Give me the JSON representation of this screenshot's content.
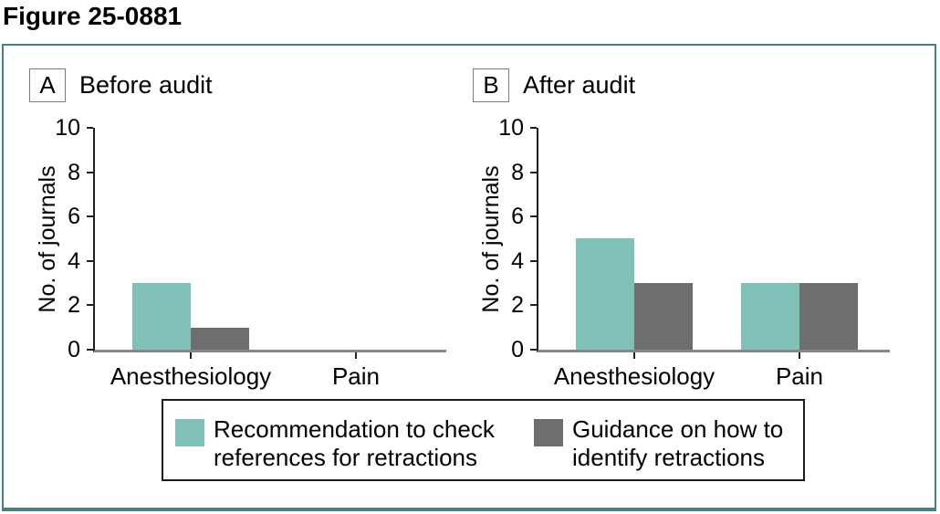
{
  "title": "Figure 25-0881",
  "panels": [
    {
      "letter": "A",
      "title": "Before audit"
    },
    {
      "letter": "B",
      "title": "After audit"
    }
  ],
  "legend": {
    "items": [
      {
        "label": "Recommendation to check references for retractions",
        "color": "#7fc1b6"
      },
      {
        "label": "Guidance on how to identify retractions",
        "color": "#6d6e70"
      }
    ]
  },
  "colors": {
    "series_teal": "#7fc1b6",
    "series_gray": "#6d6e70",
    "frame_border": "#47807c",
    "axis": "#1f1f1f",
    "baseline": "#85878a",
    "legend_border": "#1a1a1a"
  },
  "chart_data": [
    {
      "type": "bar",
      "panel": "A",
      "title": "Before audit",
      "categories": [
        "Anesthesiology",
        "Pain"
      ],
      "series": [
        {
          "name": "Recommendation to check references for retractions",
          "color": "#7fc1b6",
          "values": [
            3,
            0
          ]
        },
        {
          "name": "Guidance on how to identify retractions",
          "color": "#6d6e70",
          "values": [
            1,
            0
          ]
        }
      ],
      "xlabel": "",
      "ylabel": "No. of journals",
      "ylim": [
        0,
        10
      ],
      "yticks": [
        0,
        2,
        4,
        6,
        8,
        10
      ],
      "grid": false,
      "legend_position": "bottom-shared"
    },
    {
      "type": "bar",
      "panel": "B",
      "title": "After audit",
      "categories": [
        "Anesthesiology",
        "Pain"
      ],
      "series": [
        {
          "name": "Recommendation to check references for retractions",
          "color": "#7fc1b6",
          "values": [
            5,
            3
          ]
        },
        {
          "name": "Guidance on how to identify retractions",
          "color": "#6d6e70",
          "values": [
            3,
            3
          ]
        }
      ],
      "xlabel": "",
      "ylabel": "No. of journals",
      "ylim": [
        0,
        10
      ],
      "yticks": [
        0,
        2,
        4,
        6,
        8,
        10
      ],
      "grid": false,
      "legend_position": "bottom-shared"
    }
  ]
}
